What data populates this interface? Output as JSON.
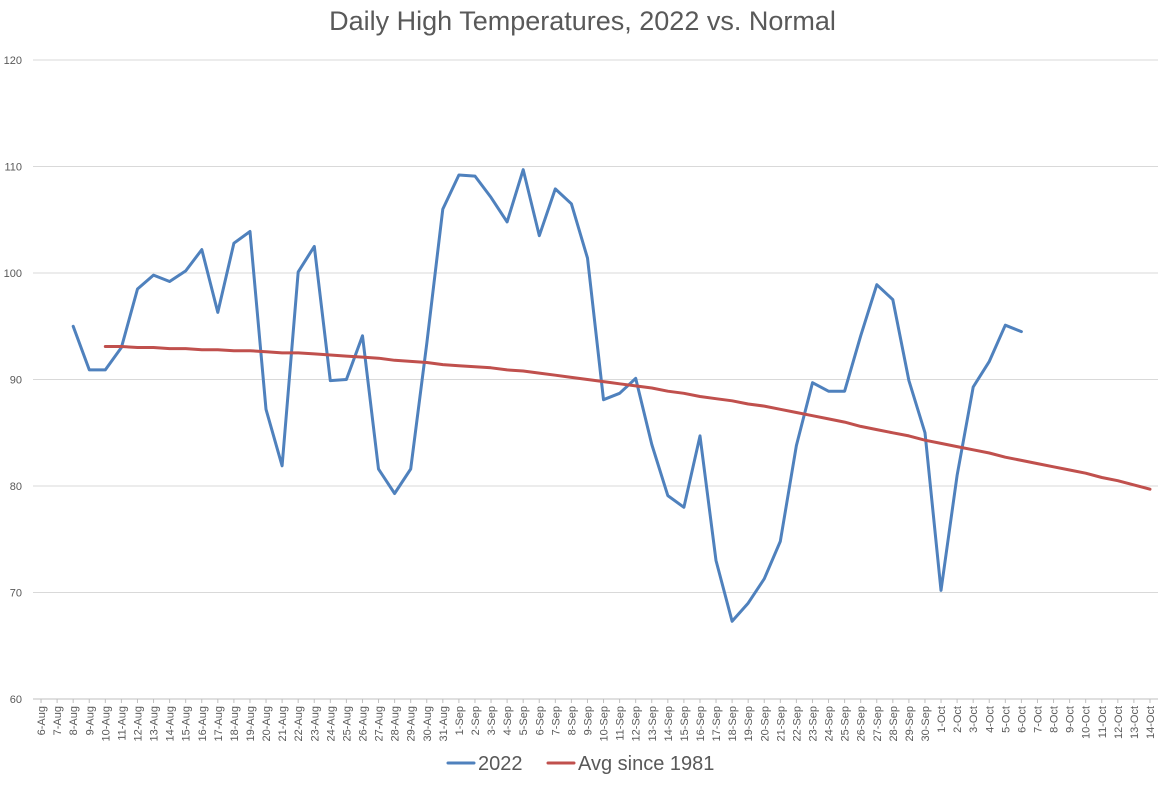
{
  "chart_data": {
    "type": "line",
    "title": "Daily High Temperatures, 2022 vs. Normal",
    "xlabel": "",
    "ylabel": "",
    "ylim": [
      60,
      120
    ],
    "yticks": [
      60,
      70,
      80,
      90,
      100,
      110,
      120
    ],
    "grid": true,
    "legend_position": "bottom",
    "categories": [
      "6-Aug",
      "7-Aug",
      "8-Aug",
      "9-Aug",
      "10-Aug",
      "11-Aug",
      "12-Aug",
      "13-Aug",
      "14-Aug",
      "15-Aug",
      "16-Aug",
      "17-Aug",
      "18-Aug",
      "19-Aug",
      "20-Aug",
      "21-Aug",
      "22-Aug",
      "23-Aug",
      "24-Aug",
      "25-Aug",
      "26-Aug",
      "27-Aug",
      "28-Aug",
      "29-Aug",
      "30-Aug",
      "31-Aug",
      "1-Sep",
      "2-Sep",
      "3-Sep",
      "4-Sep",
      "5-Sep",
      "6-Sep",
      "7-Sep",
      "8-Sep",
      "9-Sep",
      "10-Sep",
      "11-Sep",
      "12-Sep",
      "13-Sep",
      "14-Sep",
      "15-Sep",
      "16-Sep",
      "17-Sep",
      "18-Sep",
      "19-Sep",
      "20-Sep",
      "21-Sep",
      "22-Sep",
      "23-Sep",
      "24-Sep",
      "25-Sep",
      "26-Sep",
      "27-Sep",
      "28-Sep",
      "29-Sep",
      "30-Sep",
      "1-Oct",
      "2-Oct",
      "3-Oct",
      "4-Oct",
      "5-Oct",
      "6-Oct",
      "7-Oct",
      "8-Oct",
      "9-Oct",
      "10-Oct",
      "11-Oct",
      "12-Oct",
      "13-Oct",
      "14-Oct"
    ],
    "series": [
      {
        "name": "2022",
        "color": "#4f81bd",
        "values": [
          null,
          null,
          95.0,
          90.9,
          90.9,
          93.0,
          98.5,
          99.8,
          99.2,
          100.2,
          102.2,
          96.3,
          102.8,
          103.9,
          87.2,
          81.9,
          100.1,
          102.5,
          89.9,
          90.0,
          94.1,
          81.6,
          79.3,
          81.6,
          93.4,
          106.0,
          109.2,
          109.1,
          107.1,
          104.8,
          109.7,
          103.5,
          107.9,
          106.5,
          101.4,
          88.1,
          88.7,
          90.1,
          83.9,
          79.1,
          78.0,
          84.7,
          73.0,
          67.3,
          69.0,
          71.3,
          74.8,
          83.8,
          89.7,
          88.9,
          88.9,
          94.1,
          98.9,
          97.5,
          89.9,
          85.0,
          70.2,
          81.0,
          89.3,
          91.7,
          95.1,
          94.5,
          null,
          null,
          null,
          null,
          null,
          null,
          null,
          null
        ]
      },
      {
        "name": "Avg since 1981",
        "color": "#c0504d",
        "values": [
          null,
          null,
          null,
          null,
          93.1,
          93.1,
          93.0,
          93.0,
          92.9,
          92.9,
          92.8,
          92.8,
          92.7,
          92.7,
          92.6,
          92.5,
          92.5,
          92.4,
          92.3,
          92.2,
          92.1,
          92.0,
          91.8,
          91.7,
          91.6,
          91.4,
          91.3,
          91.2,
          91.1,
          90.9,
          90.8,
          90.6,
          90.4,
          90.2,
          90.0,
          89.8,
          89.6,
          89.4,
          89.2,
          88.9,
          88.7,
          88.4,
          88.2,
          88.0,
          87.7,
          87.5,
          87.2,
          86.9,
          86.6,
          86.3,
          86.0,
          85.6,
          85.3,
          85.0,
          84.7,
          84.3,
          84.0,
          83.7,
          83.4,
          83.1,
          82.7,
          82.4,
          82.1,
          81.8,
          81.5,
          81.2,
          80.8,
          80.5,
          80.1,
          79.7
        ]
      }
    ]
  }
}
